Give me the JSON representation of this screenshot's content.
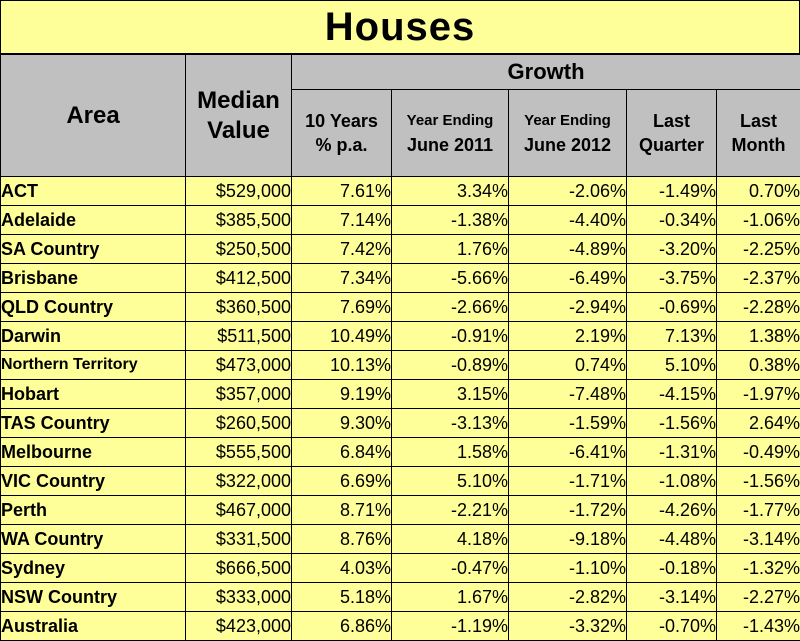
{
  "title": "Houses",
  "headers": {
    "area": "Area",
    "median_line1": "Median",
    "median_line2": "Value",
    "growth": "Growth",
    "ten_years_line1": "10 Years",
    "ten_years_line2": "% p.a.",
    "ye2011_line1": "Year Ending",
    "ye2011_line2": "June 2011",
    "ye2012_line1": "Year Ending",
    "ye2012_line2": "June 2012",
    "last_quarter_line1": "Last",
    "last_quarter_line2": "Quarter",
    "last_month_line1": "Last",
    "last_month_line2": "Month"
  },
  "rows": [
    {
      "area": "ACT",
      "median": "$529,000",
      "ten_years": "7.61%",
      "ye2011": "3.34%",
      "ye2012": "-2.06%",
      "last_quarter": "-1.49%",
      "last_month": "0.70%"
    },
    {
      "area": "Adelaide",
      "median": "$385,500",
      "ten_years": "7.14%",
      "ye2011": "-1.38%",
      "ye2012": "-4.40%",
      "last_quarter": "-0.34%",
      "last_month": "-1.06%"
    },
    {
      "area": "SA Country",
      "median": "$250,500",
      "ten_years": "7.42%",
      "ye2011": "1.76%",
      "ye2012": "-4.89%",
      "last_quarter": "-3.20%",
      "last_month": "-2.25%"
    },
    {
      "area": "Brisbane",
      "median": "$412,500",
      "ten_years": "7.34%",
      "ye2011": "-5.66%",
      "ye2012": "-6.49%",
      "last_quarter": "-3.75%",
      "last_month": "-2.37%"
    },
    {
      "area": "QLD Country",
      "median": "$360,500",
      "ten_years": "7.69%",
      "ye2011": "-2.66%",
      "ye2012": "-2.94%",
      "last_quarter": "-0.69%",
      "last_month": "-2.28%"
    },
    {
      "area": "Darwin",
      "median": "$511,500",
      "ten_years": "10.49%",
      "ye2011": "-0.91%",
      "ye2012": "2.19%",
      "last_quarter": "7.13%",
      "last_month": "1.38%"
    },
    {
      "area": "Northern Territory",
      "median": "$473,000",
      "ten_years": "10.13%",
      "ye2011": "-0.89%",
      "ye2012": "0.74%",
      "last_quarter": "5.10%",
      "last_month": "0.38%"
    },
    {
      "area": "Hobart",
      "median": "$357,000",
      "ten_years": "9.19%",
      "ye2011": "3.15%",
      "ye2012": "-7.48%",
      "last_quarter": "-4.15%",
      "last_month": "-1.97%"
    },
    {
      "area": "TAS Country",
      "median": "$260,500",
      "ten_years": "9.30%",
      "ye2011": "-3.13%",
      "ye2012": "-1.59%",
      "last_quarter": "-1.56%",
      "last_month": "2.64%"
    },
    {
      "area": "Melbourne",
      "median": "$555,500",
      "ten_years": "6.84%",
      "ye2011": "1.58%",
      "ye2012": "-6.41%",
      "last_quarter": "-1.31%",
      "last_month": "-0.49%"
    },
    {
      "area": "VIC Country",
      "median": "$322,000",
      "ten_years": "6.69%",
      "ye2011": "5.10%",
      "ye2012": "-1.71%",
      "last_quarter": "-1.08%",
      "last_month": "-1.56%"
    },
    {
      "area": "Perth",
      "median": "$467,000",
      "ten_years": "8.71%",
      "ye2011": "-2.21%",
      "ye2012": "-1.72%",
      "last_quarter": "-4.26%",
      "last_month": "-1.77%"
    },
    {
      "area": "WA Country",
      "median": "$331,500",
      "ten_years": "8.76%",
      "ye2011": "4.18%",
      "ye2012": "-9.18%",
      "last_quarter": "-4.48%",
      "last_month": "-3.14%"
    },
    {
      "area": "Sydney",
      "median": "$666,500",
      "ten_years": "4.03%",
      "ye2011": "-0.47%",
      "ye2012": "-1.10%",
      "last_quarter": "-0.18%",
      "last_month": "-1.32%"
    },
    {
      "area": "NSW Country",
      "median": "$333,000",
      "ten_years": "5.18%",
      "ye2011": "1.67%",
      "ye2012": "-2.82%",
      "last_quarter": "-3.14%",
      "last_month": "-2.27%"
    },
    {
      "area": "Australia",
      "median": "$423,000",
      "ten_years": "6.86%",
      "ye2011": "-1.19%",
      "ye2012": "-3.32%",
      "last_quarter": "-0.70%",
      "last_month": "-1.43%"
    }
  ],
  "colors": {
    "cell_background": "#ffff99",
    "header_background": "#c0c0c0",
    "grid_lines": "#000000"
  }
}
